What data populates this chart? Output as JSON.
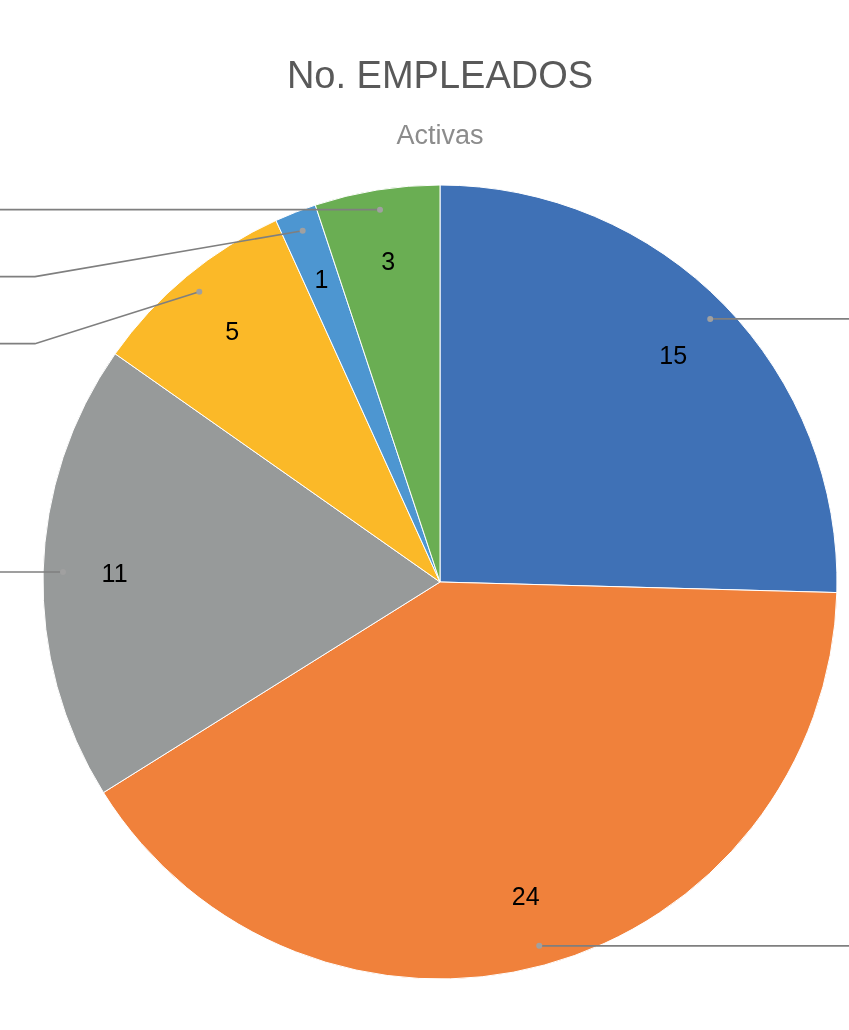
{
  "chart_data": {
    "type": "pie",
    "title": "No. EMPLEADOS",
    "subtitle": "Activas",
    "categories": [
      null,
      null,
      null,
      null,
      null,
      null
    ],
    "values": [
      15,
      24,
      11,
      5,
      1,
      3
    ],
    "colors": [
      "#3f71b6",
      "#f0813b",
      "#979a9a",
      "#fbb928",
      "#4d96d1",
      "#6aae53"
    ],
    "data_labels": true,
    "legend": false
  }
}
